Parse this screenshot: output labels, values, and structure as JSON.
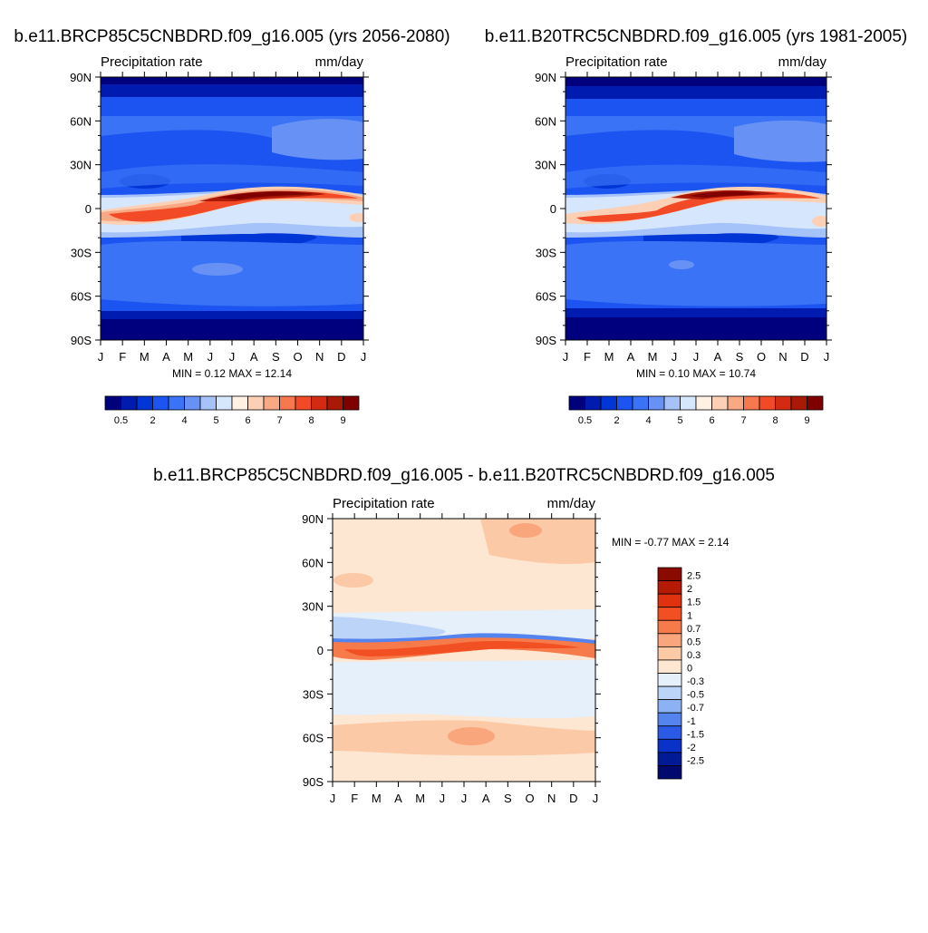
{
  "chart_data": [
    {
      "type": "heatmap",
      "title": "b.e11.BRCP85C5CNBDRD.f09_g16.005 (yrs 2056-2080)",
      "left_label": "Precipitation rate",
      "right_label": "mm/day",
      "x_ticks": [
        "J",
        "F",
        "M",
        "A",
        "M",
        "J",
        "J",
        "A",
        "S",
        "O",
        "N",
        "D",
        "J"
      ],
      "y_ticks": [
        "90N",
        "60N",
        "30N",
        "0",
        "30S",
        "60S",
        "90S"
      ],
      "min_max": "MIN =   0.12 MAX =  12.14",
      "colorbar_labels": [
        "0.5",
        "2",
        "4",
        "5",
        "6",
        "7",
        "8",
        "9"
      ],
      "colorbar_colors": [
        "#00007f",
        "#001bb0",
        "#0035d6",
        "#1b54f0",
        "#3a73f5",
        "#6891f5",
        "#a6c3f9",
        "#d6e6fc",
        "#fff0e4",
        "#fcd0b4",
        "#f9a884",
        "#f7774f",
        "#f24a26",
        "#d42b10",
        "#aa1808",
        "#7f0000"
      ]
    },
    {
      "type": "heatmap",
      "title": "b.e11.B20TRC5CNBDRD.f09_g16.005 (yrs 1981-2005)",
      "left_label": "Precipitation rate",
      "right_label": "mm/day",
      "x_ticks": [
        "J",
        "F",
        "M",
        "A",
        "M",
        "J",
        "J",
        "A",
        "S",
        "O",
        "N",
        "D",
        "J"
      ],
      "y_ticks": [
        "90N",
        "60N",
        "30N",
        "0",
        "30S",
        "60S",
        "90S"
      ],
      "min_max": "MIN =   0.10 MAX =  10.74",
      "colorbar_labels": [
        "0.5",
        "2",
        "4",
        "5",
        "6",
        "7",
        "8",
        "9"
      ],
      "colorbar_colors": [
        "#00007f",
        "#001bb0",
        "#0035d6",
        "#1b54f0",
        "#3a73f5",
        "#6891f5",
        "#a6c3f9",
        "#d6e6fc",
        "#fff0e4",
        "#fcd0b4",
        "#f9a884",
        "#f7774f",
        "#f24a26",
        "#d42b10",
        "#aa1808",
        "#7f0000"
      ]
    },
    {
      "type": "heatmap",
      "title": "b.e11.BRCP85C5CNBDRD.f09_g16.005 - b.e11.B20TRC5CNBDRD.f09_g16.005",
      "left_label": "Precipitation rate",
      "right_label": "mm/day",
      "x_ticks": [
        "J",
        "F",
        "M",
        "A",
        "M",
        "J",
        "J",
        "A",
        "S",
        "O",
        "N",
        "D",
        "J"
      ],
      "y_ticks": [
        "90N",
        "60N",
        "30N",
        "0",
        "30S",
        "60S",
        "90S"
      ],
      "min_max": "MIN =  -0.77 MAX =   2.14",
      "colorbar_labels": [
        "2.5",
        "2",
        "1.5",
        "1",
        "0.7",
        "0.5",
        "0.3",
        "0",
        "-0.3",
        "-0.5",
        "-0.7",
        "-1",
        "-1.5",
        "-2",
        "-2.5"
      ],
      "colorbar_colors": [
        "#8b0a00",
        "#b51a05",
        "#e0320f",
        "#f25023",
        "#f77a4a",
        "#f9a67d",
        "#fbc9a6",
        "#fde6d2",
        "#e6f0fb",
        "#bcd4f7",
        "#8cb2f3",
        "#5584ee",
        "#2a5ae6",
        "#0a32c8",
        "#001a96",
        "#000a6e"
      ]
    }
  ]
}
